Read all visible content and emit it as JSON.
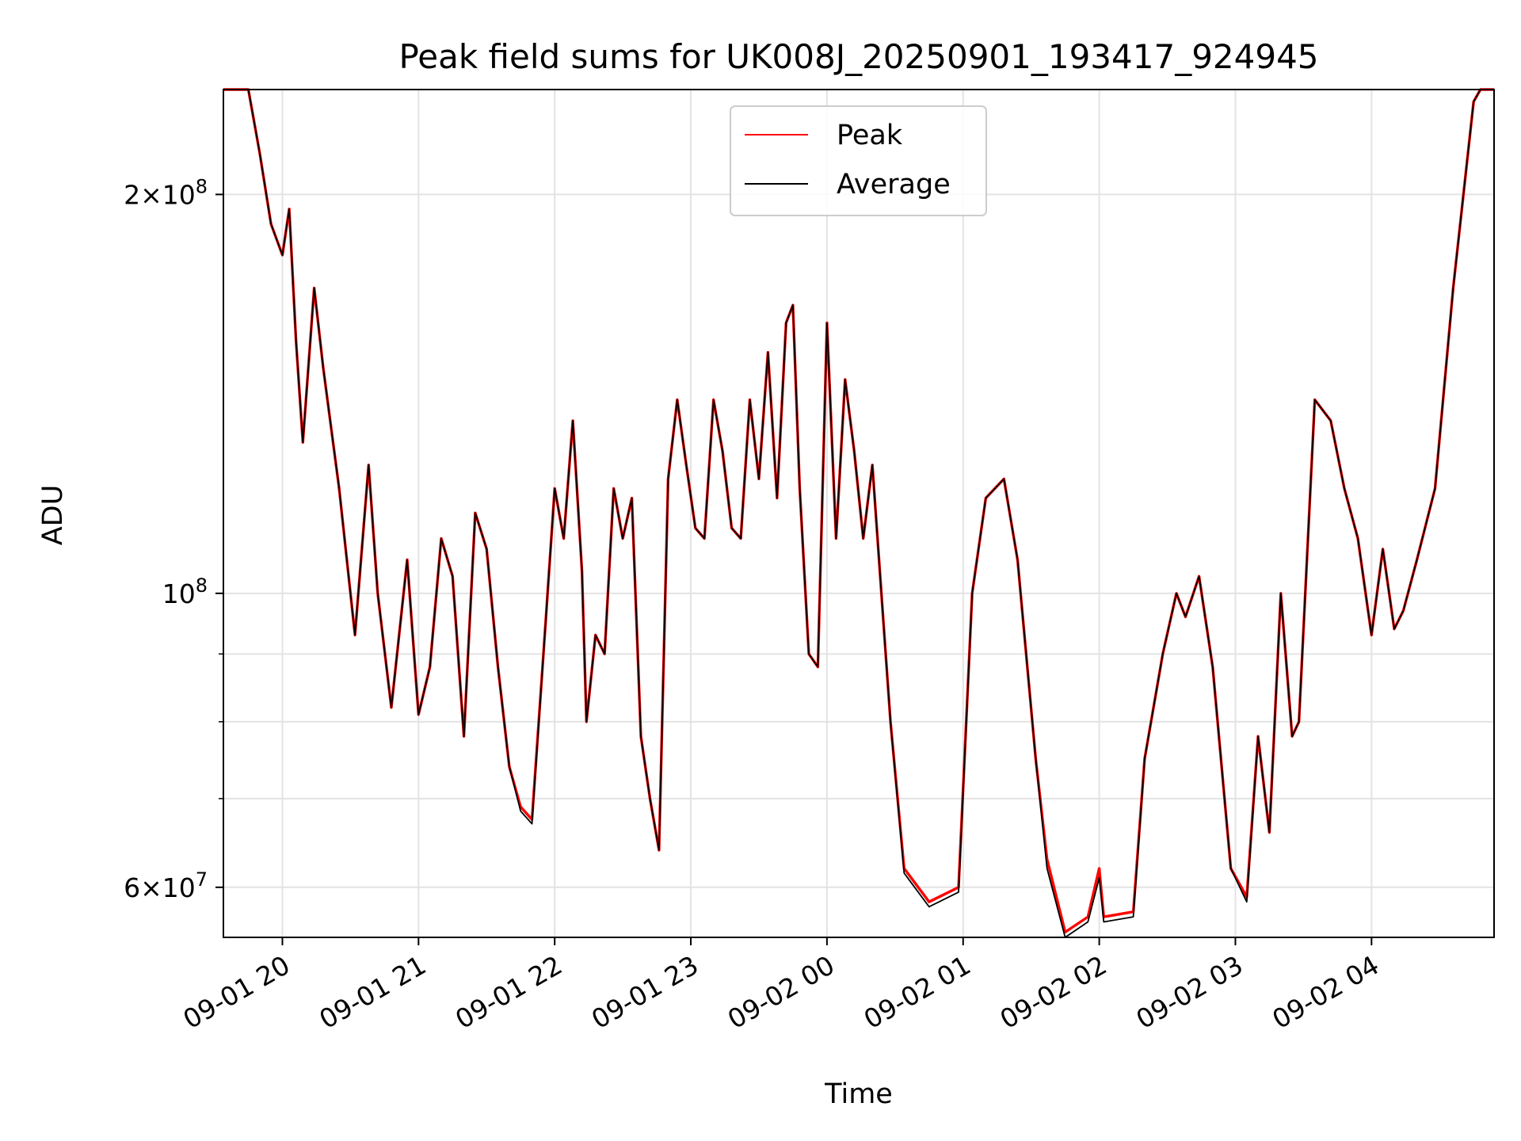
{
  "chart_data": {
    "type": "line",
    "title": "Peak field sums for UK008J_20250901_193417_924945",
    "xlabel": "Time",
    "ylabel": "ADU",
    "y_scale": "log",
    "ylim": [
      55000000,
      240000000
    ],
    "xlim": [
      "2025-09-01 19:34",
      "2025-09-02 04:54"
    ],
    "grid": true,
    "legend": "upper center",
    "x_ticks": [
      {
        "x": "2025-09-01 20:00",
        "label": "09-01 20"
      },
      {
        "x": "2025-09-01 21:00",
        "label": "09-01 21"
      },
      {
        "x": "2025-09-01 22:00",
        "label": "09-01 22"
      },
      {
        "x": "2025-09-01 23:00",
        "label": "09-01 23"
      },
      {
        "x": "2025-09-02 00:00",
        "label": "09-02 00"
      },
      {
        "x": "2025-09-02 01:00",
        "label": "09-02 01"
      },
      {
        "x": "2025-09-02 02:00",
        "label": "09-02 02"
      },
      {
        "x": "2025-09-02 03:00",
        "label": "09-02 03"
      },
      {
        "x": "2025-09-02 04:00",
        "label": "09-02 04"
      }
    ],
    "y_major_ticks": [
      {
        "value": 60000000,
        "mantissa": "6",
        "exponent": "7"
      },
      {
        "value": 100000000,
        "mantissa": "",
        "exponent": "8"
      },
      {
        "value": 200000000,
        "mantissa": "2",
        "exponent": "8"
      }
    ],
    "y_minor_ticks": [
      70000000,
      80000000,
      90000000
    ],
    "series": [
      {
        "name": "Peak",
        "color": "#ff0000",
        "points": [
          [
            "2025-09-01 19:34",
            240000000
          ],
          [
            "2025-09-01 19:45",
            240000000
          ],
          [
            "2025-09-01 19:50",
            215000000
          ],
          [
            "2025-09-01 19:55",
            190000000
          ],
          [
            "2025-09-01 20:00",
            180000000
          ],
          [
            "2025-09-01 20:03",
            195000000
          ],
          [
            "2025-09-01 20:06",
            155000000
          ],
          [
            "2025-09-01 20:09",
            130000000
          ],
          [
            "2025-09-01 20:14",
            170000000
          ],
          [
            "2025-09-01 20:18",
            148000000
          ],
          [
            "2025-09-01 20:25",
            120000000
          ],
          [
            "2025-09-01 20:32",
            93000000
          ],
          [
            "2025-09-01 20:38",
            125000000
          ],
          [
            "2025-09-01 20:42",
            100000000
          ],
          [
            "2025-09-01 20:48",
            82000000
          ],
          [
            "2025-09-01 20:55",
            106000000
          ],
          [
            "2025-09-01 21:00",
            81000000
          ],
          [
            "2025-09-01 21:05",
            88000000
          ],
          [
            "2025-09-01 21:10",
            110000000
          ],
          [
            "2025-09-01 21:15",
            103000000
          ],
          [
            "2025-09-01 21:20",
            78000000
          ],
          [
            "2025-09-01 21:25",
            115000000
          ],
          [
            "2025-09-01 21:30",
            108000000
          ],
          [
            "2025-09-01 21:35",
            88000000
          ],
          [
            "2025-09-01 21:40",
            74000000
          ],
          [
            "2025-09-01 21:45",
            69000000
          ],
          [
            "2025-09-01 21:50",
            67500000
          ],
          [
            "2025-09-01 21:56",
            95000000
          ],
          [
            "2025-09-01 22:00",
            120000000
          ],
          [
            "2025-09-01 22:04",
            110000000
          ],
          [
            "2025-09-01 22:08",
            135000000
          ],
          [
            "2025-09-01 22:12",
            104000000
          ],
          [
            "2025-09-01 22:14",
            80000000
          ],
          [
            "2025-09-01 22:18",
            93000000
          ],
          [
            "2025-09-01 22:22",
            90000000
          ],
          [
            "2025-09-01 22:26",
            120000000
          ],
          [
            "2025-09-01 22:30",
            110000000
          ],
          [
            "2025-09-01 22:34",
            118000000
          ],
          [
            "2025-09-01 22:38",
            78000000
          ],
          [
            "2025-09-01 22:42",
            70000000
          ],
          [
            "2025-09-01 22:46",
            64000000
          ],
          [
            "2025-09-01 22:50",
            122000000
          ],
          [
            "2025-09-01 22:54",
            140000000
          ],
          [
            "2025-09-01 22:58",
            125000000
          ],
          [
            "2025-09-01 23:02",
            112000000
          ],
          [
            "2025-09-01 23:06",
            110000000
          ],
          [
            "2025-09-01 23:10",
            140000000
          ],
          [
            "2025-09-01 23:14",
            128000000
          ],
          [
            "2025-09-01 23:18",
            112000000
          ],
          [
            "2025-09-01 23:22",
            110000000
          ],
          [
            "2025-09-01 23:26",
            140000000
          ],
          [
            "2025-09-01 23:30",
            122000000
          ],
          [
            "2025-09-01 23:34",
            152000000
          ],
          [
            "2025-09-01 23:38",
            118000000
          ],
          [
            "2025-09-01 23:42",
            160000000
          ],
          [
            "2025-09-01 23:45",
            165000000
          ],
          [
            "2025-09-01 23:48",
            120000000
          ],
          [
            "2025-09-01 23:52",
            90000000
          ],
          [
            "2025-09-01 23:56",
            88000000
          ],
          [
            "2025-09-02 00:00",
            160000000
          ],
          [
            "2025-09-02 00:04",
            110000000
          ],
          [
            "2025-09-02 00:08",
            145000000
          ],
          [
            "2025-09-02 00:12",
            128000000
          ],
          [
            "2025-09-02 00:16",
            110000000
          ],
          [
            "2025-09-02 00:20",
            125000000
          ],
          [
            "2025-09-02 00:24",
            100000000
          ],
          [
            "2025-09-02 00:28",
            80000000
          ],
          [
            "2025-09-02 00:34",
            62000000
          ],
          [
            "2025-09-02 00:45",
            58500000
          ],
          [
            "2025-09-02 00:58",
            60000000
          ],
          [
            "2025-09-02 01:04",
            100000000
          ],
          [
            "2025-09-02 01:10",
            118000000
          ],
          [
            "2025-09-02 01:18",
            122000000
          ],
          [
            "2025-09-02 01:24",
            106000000
          ],
          [
            "2025-09-02 01:32",
            75000000
          ],
          [
            "2025-09-02 01:37",
            63000000
          ],
          [
            "2025-09-02 01:45",
            55500000
          ],
          [
            "2025-09-02 01:55",
            57000000
          ],
          [
            "2025-09-02 02:00",
            62000000
          ],
          [
            "2025-09-02 02:02",
            57000000
          ],
          [
            "2025-09-02 02:15",
            57500000
          ],
          [
            "2025-09-02 02:20",
            75000000
          ],
          [
            "2025-09-02 02:28",
            90000000
          ],
          [
            "2025-09-02 02:34",
            100000000
          ],
          [
            "2025-09-02 02:38",
            96000000
          ],
          [
            "2025-09-02 02:44",
            103000000
          ],
          [
            "2025-09-02 02:50",
            88000000
          ],
          [
            "2025-09-02 02:58",
            62000000
          ],
          [
            "2025-09-02 03:05",
            59000000
          ],
          [
            "2025-09-02 03:10",
            78000000
          ],
          [
            "2025-09-02 03:15",
            66000000
          ],
          [
            "2025-09-02 03:20",
            100000000
          ],
          [
            "2025-09-02 03:25",
            78000000
          ],
          [
            "2025-09-02 03:28",
            80000000
          ],
          [
            "2025-09-02 03:35",
            140000000
          ],
          [
            "2025-09-02 03:42",
            135000000
          ],
          [
            "2025-09-02 03:48",
            120000000
          ],
          [
            "2025-09-02 03:54",
            110000000
          ],
          [
            "2025-09-02 04:00",
            93000000
          ],
          [
            "2025-09-02 04:05",
            108000000
          ],
          [
            "2025-09-02 04:10",
            94000000
          ],
          [
            "2025-09-02 04:14",
            97000000
          ],
          [
            "2025-09-02 04:20",
            106000000
          ],
          [
            "2025-09-02 04:28",
            120000000
          ],
          [
            "2025-09-02 04:36",
            170000000
          ],
          [
            "2025-09-02 04:45",
            235000000
          ],
          [
            "2025-09-02 04:48",
            240000000
          ],
          [
            "2025-09-02 04:54",
            240000000
          ]
        ]
      },
      {
        "name": "Average",
        "color": "#000000",
        "points": [
          [
            "2025-09-01 19:34",
            240000000
          ],
          [
            "2025-09-01 19:45",
            240000000
          ],
          [
            "2025-09-01 19:50",
            215000000
          ],
          [
            "2025-09-01 19:55",
            190000000
          ],
          [
            "2025-09-01 20:00",
            180000000
          ],
          [
            "2025-09-01 20:03",
            195000000
          ],
          [
            "2025-09-01 20:06",
            155000000
          ],
          [
            "2025-09-01 20:09",
            130000000
          ],
          [
            "2025-09-01 20:14",
            170000000
          ],
          [
            "2025-09-01 20:18",
            148000000
          ],
          [
            "2025-09-01 20:25",
            120000000
          ],
          [
            "2025-09-01 20:32",
            93000000
          ],
          [
            "2025-09-01 20:38",
            125000000
          ],
          [
            "2025-09-01 20:42",
            100000000
          ],
          [
            "2025-09-01 20:48",
            82000000
          ],
          [
            "2025-09-01 20:55",
            106000000
          ],
          [
            "2025-09-01 21:00",
            81000000
          ],
          [
            "2025-09-01 21:05",
            88000000
          ],
          [
            "2025-09-01 21:10",
            110000000
          ],
          [
            "2025-09-01 21:15",
            103000000
          ],
          [
            "2025-09-01 21:20",
            78000000
          ],
          [
            "2025-09-01 21:25",
            115000000
          ],
          [
            "2025-09-01 21:30",
            108000000
          ],
          [
            "2025-09-01 21:35",
            88000000
          ],
          [
            "2025-09-01 21:40",
            74000000
          ],
          [
            "2025-09-01 21:45",
            68500000
          ],
          [
            "2025-09-01 21:50",
            67000000
          ],
          [
            "2025-09-01 21:56",
            95000000
          ],
          [
            "2025-09-01 22:00",
            120000000
          ],
          [
            "2025-09-01 22:04",
            110000000
          ],
          [
            "2025-09-01 22:08",
            135000000
          ],
          [
            "2025-09-01 22:12",
            104000000
          ],
          [
            "2025-09-01 22:14",
            80000000
          ],
          [
            "2025-09-01 22:18",
            93000000
          ],
          [
            "2025-09-01 22:22",
            90000000
          ],
          [
            "2025-09-01 22:26",
            120000000
          ],
          [
            "2025-09-01 22:30",
            110000000
          ],
          [
            "2025-09-01 22:34",
            118000000
          ],
          [
            "2025-09-01 22:38",
            78000000
          ],
          [
            "2025-09-01 22:42",
            70000000
          ],
          [
            "2025-09-01 22:46",
            64000000
          ],
          [
            "2025-09-01 22:50",
            122000000
          ],
          [
            "2025-09-01 22:54",
            140000000
          ],
          [
            "2025-09-01 22:58",
            125000000
          ],
          [
            "2025-09-01 23:02",
            112000000
          ],
          [
            "2025-09-01 23:06",
            110000000
          ],
          [
            "2025-09-01 23:10",
            140000000
          ],
          [
            "2025-09-01 23:14",
            128000000
          ],
          [
            "2025-09-01 23:18",
            112000000
          ],
          [
            "2025-09-01 23:22",
            110000000
          ],
          [
            "2025-09-01 23:26",
            140000000
          ],
          [
            "2025-09-01 23:30",
            122000000
          ],
          [
            "2025-09-01 23:34",
            152000000
          ],
          [
            "2025-09-01 23:38",
            118000000
          ],
          [
            "2025-09-01 23:42",
            160000000
          ],
          [
            "2025-09-01 23:45",
            165000000
          ],
          [
            "2025-09-01 23:48",
            120000000
          ],
          [
            "2025-09-01 23:52",
            90000000
          ],
          [
            "2025-09-01 23:56",
            88000000
          ],
          [
            "2025-09-02 00:00",
            160000000
          ],
          [
            "2025-09-02 00:04",
            110000000
          ],
          [
            "2025-09-02 00:08",
            145000000
          ],
          [
            "2025-09-02 00:12",
            128000000
          ],
          [
            "2025-09-02 00:16",
            110000000
          ],
          [
            "2025-09-02 00:20",
            125000000
          ],
          [
            "2025-09-02 00:24",
            100000000
          ],
          [
            "2025-09-02 00:28",
            80000000
          ],
          [
            "2025-09-02 00:34",
            61500000
          ],
          [
            "2025-09-02 00:45",
            58000000
          ],
          [
            "2025-09-02 00:58",
            59500000
          ],
          [
            "2025-09-02 01:04",
            100000000
          ],
          [
            "2025-09-02 01:10",
            118000000
          ],
          [
            "2025-09-02 01:18",
            122000000
          ],
          [
            "2025-09-02 01:24",
            106000000
          ],
          [
            "2025-09-02 01:32",
            75000000
          ],
          [
            "2025-09-02 01:37",
            62000000
          ],
          [
            "2025-09-02 01:45",
            55000000
          ],
          [
            "2025-09-02 01:55",
            56500000
          ],
          [
            "2025-09-02 02:00",
            61000000
          ],
          [
            "2025-09-02 02:02",
            56500000
          ],
          [
            "2025-09-02 02:15",
            57000000
          ],
          [
            "2025-09-02 02:20",
            75000000
          ],
          [
            "2025-09-02 02:28",
            90000000
          ],
          [
            "2025-09-02 02:34",
            100000000
          ],
          [
            "2025-09-02 02:38",
            96000000
          ],
          [
            "2025-09-02 02:44",
            103000000
          ],
          [
            "2025-09-02 02:50",
            88000000
          ],
          [
            "2025-09-02 02:58",
            62000000
          ],
          [
            "2025-09-02 03:05",
            58500000
          ],
          [
            "2025-09-02 03:10",
            78000000
          ],
          [
            "2025-09-02 03:15",
            66000000
          ],
          [
            "2025-09-02 03:20",
            100000000
          ],
          [
            "2025-09-02 03:25",
            78000000
          ],
          [
            "2025-09-02 03:28",
            80000000
          ],
          [
            "2025-09-02 03:35",
            140000000
          ],
          [
            "2025-09-02 03:42",
            135000000
          ],
          [
            "2025-09-02 03:48",
            120000000
          ],
          [
            "2025-09-02 03:54",
            110000000
          ],
          [
            "2025-09-02 04:00",
            93000000
          ],
          [
            "2025-09-02 04:05",
            108000000
          ],
          [
            "2025-09-02 04:10",
            94000000
          ],
          [
            "2025-09-02 04:14",
            97000000
          ],
          [
            "2025-09-02 04:20",
            106000000
          ],
          [
            "2025-09-02 04:28",
            120000000
          ],
          [
            "2025-09-02 04:36",
            170000000
          ],
          [
            "2025-09-02 04:45",
            235000000
          ],
          [
            "2025-09-02 04:48",
            240000000
          ],
          [
            "2025-09-02 04:54",
            240000000
          ]
        ]
      }
    ]
  }
}
